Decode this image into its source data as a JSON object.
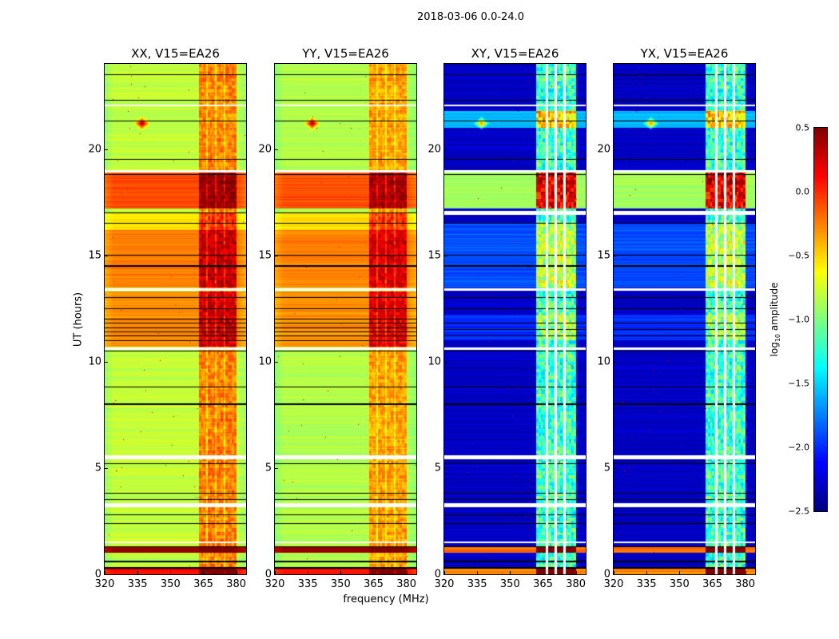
{
  "chart_data": {
    "type": "heatmap",
    "title": "2018-03-06 0.0-24.0",
    "xlabel": "frequency (MHz)",
    "ylabel": "UT (hours)",
    "xlim": [
      320,
      384.5
    ],
    "ylim": [
      0,
      24
    ],
    "xticks": [
      320,
      335,
      350,
      365,
      380
    ],
    "yticks": [
      0,
      5,
      10,
      15,
      20
    ],
    "colormap": "jet",
    "colorbar": {
      "label_prefix": "log",
      "label_sub": "10",
      "label_suffix": " amplitude",
      "range": [
        -2.5,
        0.5
      ],
      "ticks": [
        0.5,
        0.0,
        -0.5,
        -1.0,
        -1.5,
        -2.0,
        -2.5
      ],
      "tick_labels": [
        "0.5",
        "0.0",
        "−0.5",
        "−1.0",
        "−1.5",
        "−2.0",
        "−2.5"
      ]
    },
    "panels": [
      {
        "title": "XX, V15=EA26",
        "base": -0.8,
        "rfi_range": [
          363,
          380
        ],
        "rfi_boost": 0.55,
        "cross": false,
        "bands": [
          [
            0,
            0.3,
            0.1
          ],
          [
            1.0,
            1.3,
            0.45
          ],
          [
            10.7,
            13.3,
            -0.3
          ],
          [
            13.5,
            16.2,
            -0.25
          ],
          [
            16.2,
            17.0,
            -0.55
          ],
          [
            17.2,
            19.0,
            -0.1
          ]
        ],
        "flagged": [
          [
            1.45,
            1.55
          ],
          [
            3.15,
            3.35
          ],
          [
            5.4,
            5.6
          ],
          [
            10.55,
            10.65
          ],
          [
            13.35,
            13.45
          ],
          [
            18.9,
            19.0
          ],
          [
            22.0,
            22.1
          ]
        ],
        "black_lines": [
          0.3,
          0.6,
          1.3,
          2.4,
          2.8,
          3.5,
          3.8,
          5.2,
          8.0,
          8.8,
          10.5,
          11.0,
          11.2,
          11.4,
          11.6,
          11.8,
          12.0,
          12.5,
          13.0,
          14.5,
          15.0,
          16.5,
          17.0,
          18.8,
          19.5,
          21.3,
          22.3,
          23.5
        ],
        "source": {
          "t": 21.2,
          "f": 337,
          "value": 0.5
        }
      },
      {
        "title": "YY, V15=EA26",
        "base": -0.85,
        "rfi_range": [
          363,
          380
        ],
        "rfi_boost": 0.5,
        "cross": false,
        "bands": [
          [
            0,
            0.3,
            0.1
          ],
          [
            1.0,
            1.3,
            0.45
          ],
          [
            10.7,
            13.3,
            -0.3
          ],
          [
            13.5,
            16.2,
            -0.25
          ],
          [
            16.2,
            17.0,
            -0.55
          ],
          [
            17.2,
            19.0,
            -0.1
          ]
        ],
        "flagged": [
          [
            1.45,
            1.55
          ],
          [
            3.15,
            3.35
          ],
          [
            5.4,
            5.6
          ],
          [
            10.55,
            10.65
          ],
          [
            13.35,
            13.45
          ],
          [
            18.9,
            19.0
          ],
          [
            22.0,
            22.1
          ]
        ],
        "black_lines": [
          0.3,
          0.6,
          1.3,
          2.4,
          2.8,
          3.5,
          3.8,
          5.2,
          8.0,
          8.8,
          10.5,
          11.0,
          11.2,
          11.4,
          11.6,
          11.8,
          12.0,
          12.5,
          13.0,
          14.5,
          15.0,
          16.5,
          17.0,
          18.8,
          19.5,
          21.3,
          22.3,
          23.5
        ],
        "source": {
          "t": 21.2,
          "f": 337,
          "value": 0.5
        }
      },
      {
        "title": "XY, V15=EA26",
        "base": -2.3,
        "rfi_range": [
          362,
          380
        ],
        "rfi_boost": 1.1,
        "cross": true,
        "bands": [
          [
            0,
            0.3,
            -0.3
          ],
          [
            1.0,
            1.3,
            -0.2
          ],
          [
            11.0,
            12.2,
            -2.0
          ],
          [
            13.5,
            16.5,
            -1.9
          ],
          [
            17.2,
            19.0,
            -0.9
          ],
          [
            21.0,
            21.8,
            -1.6
          ]
        ],
        "flagged": [
          [
            1.45,
            1.55
          ],
          [
            3.15,
            3.35
          ],
          [
            5.4,
            5.6
          ],
          [
            10.55,
            10.65
          ],
          [
            13.35,
            13.45
          ],
          [
            16.9,
            17.1
          ],
          [
            18.9,
            19.0
          ],
          [
            22.0,
            22.1
          ]
        ],
        "black_lines": [
          0.3,
          0.6,
          1.3,
          2.4,
          2.8,
          3.5,
          3.8,
          5.2,
          8.0,
          8.8,
          10.5,
          11.2,
          11.5,
          11.8,
          12.5,
          13.0,
          14.5,
          15.0,
          16.5,
          18.8,
          19.5,
          21.3,
          22.3,
          23.5
        ],
        "source": {
          "t": 21.2,
          "f": 337,
          "value": -0.2
        }
      },
      {
        "title": "YX, V15=EA26",
        "base": -2.3,
        "rfi_range": [
          362,
          380
        ],
        "rfi_boost": 1.1,
        "cross": true,
        "bands": [
          [
            0,
            0.3,
            -0.3
          ],
          [
            1.0,
            1.3,
            -0.2
          ],
          [
            11.0,
            12.2,
            -2.0
          ],
          [
            13.5,
            16.5,
            -1.9
          ],
          [
            17.2,
            19.0,
            -0.9
          ],
          [
            21.0,
            21.8,
            -1.6
          ]
        ],
        "flagged": [
          [
            1.45,
            1.55
          ],
          [
            3.15,
            3.35
          ],
          [
            5.4,
            5.6
          ],
          [
            10.55,
            10.65
          ],
          [
            13.35,
            13.45
          ],
          [
            16.9,
            17.1
          ],
          [
            18.9,
            19.0
          ],
          [
            22.0,
            22.1
          ]
        ],
        "black_lines": [
          0.3,
          0.6,
          1.3,
          2.4,
          2.8,
          3.5,
          3.8,
          5.2,
          8.0,
          8.8,
          10.5,
          11.2,
          11.5,
          11.8,
          12.5,
          13.0,
          14.5,
          15.0,
          16.5,
          18.8,
          19.5,
          21.3,
          22.3,
          23.5
        ],
        "source": {
          "t": 21.2,
          "f": 337,
          "value": -0.2
        }
      }
    ]
  }
}
